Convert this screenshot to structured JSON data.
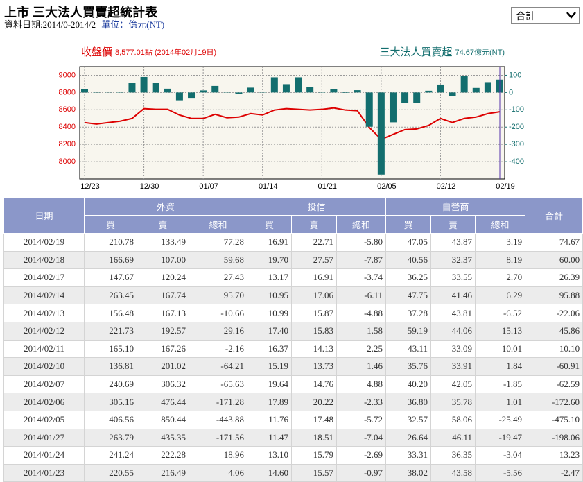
{
  "header": {
    "title": "上市 三大法人買賣超統計表",
    "date_range": "資料日期:2014/0-2014/2",
    "unit": "單位：億元(NT)",
    "select": "合計"
  },
  "chart_data": {
    "type": "bar-line",
    "categories": [
      "12/23",
      null,
      null,
      null,
      null,
      "12/30",
      null,
      null,
      null,
      null,
      "01/07",
      null,
      null,
      null,
      null,
      "01/14",
      null,
      null,
      null,
      null,
      "01/21",
      null,
      null,
      null,
      null,
      "02/05",
      null,
      null,
      null,
      null,
      "02/12",
      null,
      null,
      null,
      null,
      "02/19"
    ],
    "series": [
      {
        "name": "收盤價",
        "color": "#dd0000",
        "type": "line",
        "axis": "y",
        "note": "8,577.01點 (2014年02月19日)",
        "values": [
          8452,
          8435,
          8452,
          8468,
          8500,
          8613,
          8605,
          8605,
          8540,
          8500,
          8500,
          8548,
          8508,
          8516,
          8556,
          8540,
          8597,
          8613,
          8605,
          8597,
          8605,
          8621,
          8597,
          8589,
          8395,
          8258,
          8315,
          8371,
          8379,
          8419,
          8500,
          8452,
          8500,
          8516,
          8556,
          8577.01
        ]
      },
      {
        "name": "三大法人買賣超",
        "color": "#136e6e",
        "type": "bar",
        "axis": "y2",
        "note": "74.67億元(NT)",
        "values": [
          20,
          2,
          1,
          5,
          55,
          90,
          55,
          22,
          -45,
          -35,
          12,
          38,
          2,
          -8,
          28,
          2,
          88,
          48,
          88,
          30,
          2,
          18,
          -2.47,
          13.23,
          -198.06,
          -475.1,
          -172.6,
          -62.59,
          -60.91,
          10.1,
          45.86,
          -22.06,
          95.88,
          26.39,
          60,
          74.67
        ]
      }
    ],
    "ylim": [
      7800,
      9100
    ],
    "yticks": [
      8000,
      8200,
      8400,
      8600,
      8800,
      9000
    ],
    "y2lim": [
      -500,
      150
    ],
    "y2ticks": [
      -400,
      -300,
      -200,
      -100,
      0,
      100
    ],
    "grid": true
  },
  "table": {
    "date": "日期",
    "groups": [
      {
        "name": "外資",
        "cols": [
          "買",
          "賣",
          "總和"
        ]
      },
      {
        "name": "投信",
        "cols": [
          "買",
          "賣",
          "總和"
        ]
      },
      {
        "name": "自營商",
        "cols": [
          "買",
          "賣",
          "總和"
        ]
      }
    ],
    "total": "合計",
    "rows": [
      [
        "2014/02/19",
        "210.78",
        "133.49",
        "77.28",
        "16.91",
        "22.71",
        "-5.80",
        "47.05",
        "43.87",
        "3.19",
        "74.67"
      ],
      [
        "2014/02/18",
        "166.69",
        "107.00",
        "59.68",
        "19.70",
        "27.57",
        "-7.87",
        "40.56",
        "32.37",
        "8.19",
        "60.00"
      ],
      [
        "2014/02/17",
        "147.67",
        "120.24",
        "27.43",
        "13.17",
        "16.91",
        "-3.74",
        "36.25",
        "33.55",
        "2.70",
        "26.39"
      ],
      [
        "2014/02/14",
        "263.45",
        "167.74",
        "95.70",
        "10.95",
        "17.06",
        "-6.11",
        "47.75",
        "41.46",
        "6.29",
        "95.88"
      ],
      [
        "2014/02/13",
        "156.48",
        "167.13",
        "-10.66",
        "10.99",
        "15.87",
        "-4.88",
        "37.28",
        "43.81",
        "-6.52",
        "-22.06"
      ],
      [
        "2014/02/12",
        "221.73",
        "192.57",
        "29.16",
        "17.40",
        "15.83",
        "1.58",
        "59.19",
        "44.06",
        "15.13",
        "45.86"
      ],
      [
        "2014/02/11",
        "165.10",
        "167.26",
        "-2.16",
        "16.37",
        "14.13",
        "2.25",
        "43.11",
        "33.09",
        "10.01",
        "10.10"
      ],
      [
        "2014/02/10",
        "136.81",
        "201.02",
        "-64.21",
        "15.19",
        "13.73",
        "1.46",
        "35.76",
        "33.91",
        "1.84",
        "-60.91"
      ],
      [
        "2014/02/07",
        "240.69",
        "306.32",
        "-65.63",
        "19.64",
        "14.76",
        "4.88",
        "40.20",
        "42.05",
        "-1.85",
        "-62.59"
      ],
      [
        "2014/02/06",
        "305.16",
        "476.44",
        "-171.28",
        "17.89",
        "20.22",
        "-2.33",
        "36.80",
        "35.78",
        "1.01",
        "-172.60"
      ],
      [
        "2014/02/05",
        "406.56",
        "850.44",
        "-443.88",
        "11.76",
        "17.48",
        "-5.72",
        "32.57",
        "58.06",
        "-25.49",
        "-475.10"
      ],
      [
        "2014/01/27",
        "263.79",
        "435.35",
        "-171.56",
        "11.47",
        "18.51",
        "-7.04",
        "26.64",
        "46.11",
        "-19.47",
        "-198.06"
      ],
      [
        "2014/01/24",
        "241.24",
        "222.28",
        "18.96",
        "13.10",
        "15.79",
        "-2.69",
        "33.31",
        "36.35",
        "-3.04",
        "13.23"
      ],
      [
        "2014/01/23",
        "220.55",
        "216.49",
        "4.06",
        "14.60",
        "15.57",
        "-0.97",
        "38.02",
        "43.58",
        "-5.56",
        "-2.47"
      ]
    ]
  }
}
